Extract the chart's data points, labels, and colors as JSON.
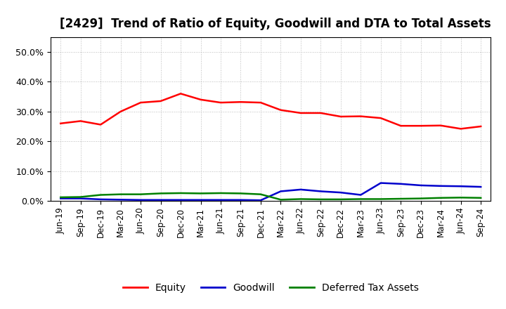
{
  "title": "[2429]  Trend of Ratio of Equity, Goodwill and DTA to Total Assets",
  "x_labels": [
    "Jun-19",
    "Sep-19",
    "Dec-19",
    "Mar-20",
    "Jun-20",
    "Sep-20",
    "Dec-20",
    "Mar-21",
    "Jun-21",
    "Sep-21",
    "Dec-21",
    "Mar-22",
    "Jun-22",
    "Sep-22",
    "Dec-22",
    "Mar-23",
    "Jun-23",
    "Sep-23",
    "Dec-23",
    "Mar-24",
    "Jun-24",
    "Sep-24"
  ],
  "equity": [
    0.26,
    0.268,
    0.256,
    0.3,
    0.33,
    0.335,
    0.36,
    0.34,
    0.33,
    0.332,
    0.33,
    0.305,
    0.295,
    0.295,
    0.283,
    0.284,
    0.278,
    0.252,
    0.252,
    0.253,
    0.242,
    0.25
  ],
  "goodwill": [
    0.008,
    0.008,
    0.005,
    0.004,
    0.003,
    0.003,
    0.003,
    0.003,
    0.003,
    0.003,
    0.002,
    0.032,
    0.038,
    0.032,
    0.028,
    0.02,
    0.06,
    0.057,
    0.052,
    0.05,
    0.049,
    0.047
  ],
  "dta": [
    0.012,
    0.013,
    0.02,
    0.022,
    0.022,
    0.025,
    0.026,
    0.025,
    0.026,
    0.025,
    0.022,
    0.004,
    0.006,
    0.005,
    0.005,
    0.006,
    0.006,
    0.007,
    0.008,
    0.01,
    0.011,
    0.01
  ],
  "equity_color": "#ff0000",
  "goodwill_color": "#0000cc",
  "dta_color": "#008000",
  "background_color": "#ffffff",
  "grid_color": "#aaaaaa",
  "ylim": [
    0.0,
    0.55
  ],
  "yticks": [
    0.0,
    0.1,
    0.2,
    0.3,
    0.4,
    0.5
  ],
  "title_fontsize": 12,
  "legend_labels": [
    "Equity",
    "Goodwill",
    "Deferred Tax Assets"
  ]
}
